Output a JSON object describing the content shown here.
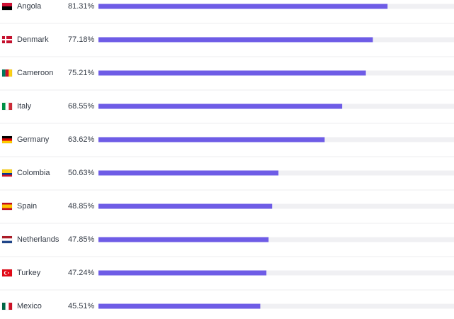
{
  "chart_data": {
    "type": "bar",
    "orientation": "horizontal",
    "categories": [
      "Angola",
      "Denmark",
      "Cameroon",
      "Italy",
      "Germany",
      "Colombia",
      "Spain",
      "Netherlands",
      "Turkey",
      "Mexico"
    ],
    "values": [
      81.31,
      77.18,
      75.21,
      68.55,
      63.62,
      50.63,
      48.85,
      47.85,
      47.24,
      45.51
    ],
    "value_labels": [
      "81.31%",
      "77.18%",
      "75.21%",
      "68.55%",
      "63.62%",
      "50.63%",
      "48.85%",
      "47.85%",
      "47.24%",
      "45.51%"
    ],
    "color": "#6e5ce6",
    "xlim": [
      0,
      100
    ]
  }
}
